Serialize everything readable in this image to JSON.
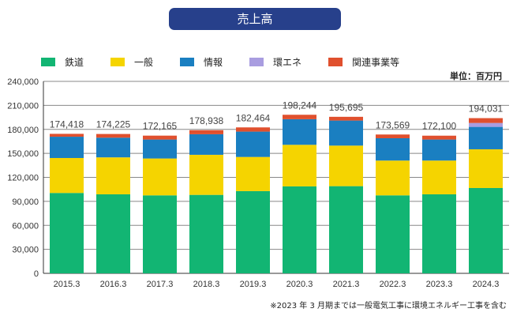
{
  "chart_data": {
    "type": "bar",
    "stacked": true,
    "title": "売上高",
    "unit_label": "単位：百万円",
    "footnote": "※2023 年 3 月期までは一般電気工事に環境エネルギー工事を含む",
    "ylim": [
      0,
      240000
    ],
    "yticks": [
      "0",
      "30,000",
      "60,000",
      "90,000",
      "120,000",
      "150,000",
      "180,000",
      "210,000",
      "240,000"
    ],
    "ytick_values": [
      0,
      30000,
      60000,
      90000,
      120000,
      150000,
      180000,
      210000,
      240000
    ],
    "categories": [
      "2015.3",
      "2016.3",
      "2017.3",
      "2018.3",
      "2019.3",
      "2020.3",
      "2021.3",
      "2022.3",
      "2023.3",
      "2024.3"
    ],
    "totals": [
      "174,418",
      "174,225",
      "172,165",
      "178,938",
      "182,464",
      "198,244",
      "195,695",
      "173,569",
      "172,100",
      "194,031"
    ],
    "legend_position": "top",
    "series": [
      {
        "name": "鉄道",
        "color": "#12b573",
        "values": [
          100500,
          98800,
          97500,
          98100,
          102800,
          108700,
          109000,
          97500,
          98800,
          106700
        ]
      },
      {
        "name": "一般",
        "color": "#f5d400",
        "values": [
          43700,
          46200,
          46100,
          50100,
          42700,
          52000,
          50700,
          43500,
          42200,
          48400
        ]
      },
      {
        "name": "情報",
        "color": "#1a7fc1",
        "values": [
          26600,
          24600,
          23700,
          25700,
          31700,
          32000,
          31300,
          27900,
          26300,
          28000
        ]
      },
      {
        "name": "環エネ",
        "color": "#a99de0",
        "values": [
          0,
          0,
          0,
          0,
          0,
          0,
          0,
          0,
          0,
          4900
        ]
      },
      {
        "name": "関連事業等",
        "color": "#e0502e",
        "values": [
          3618,
          4625,
          4865,
          5038,
          5264,
          5544,
          4695,
          4669,
          4800,
          6031
        ]
      }
    ]
  }
}
